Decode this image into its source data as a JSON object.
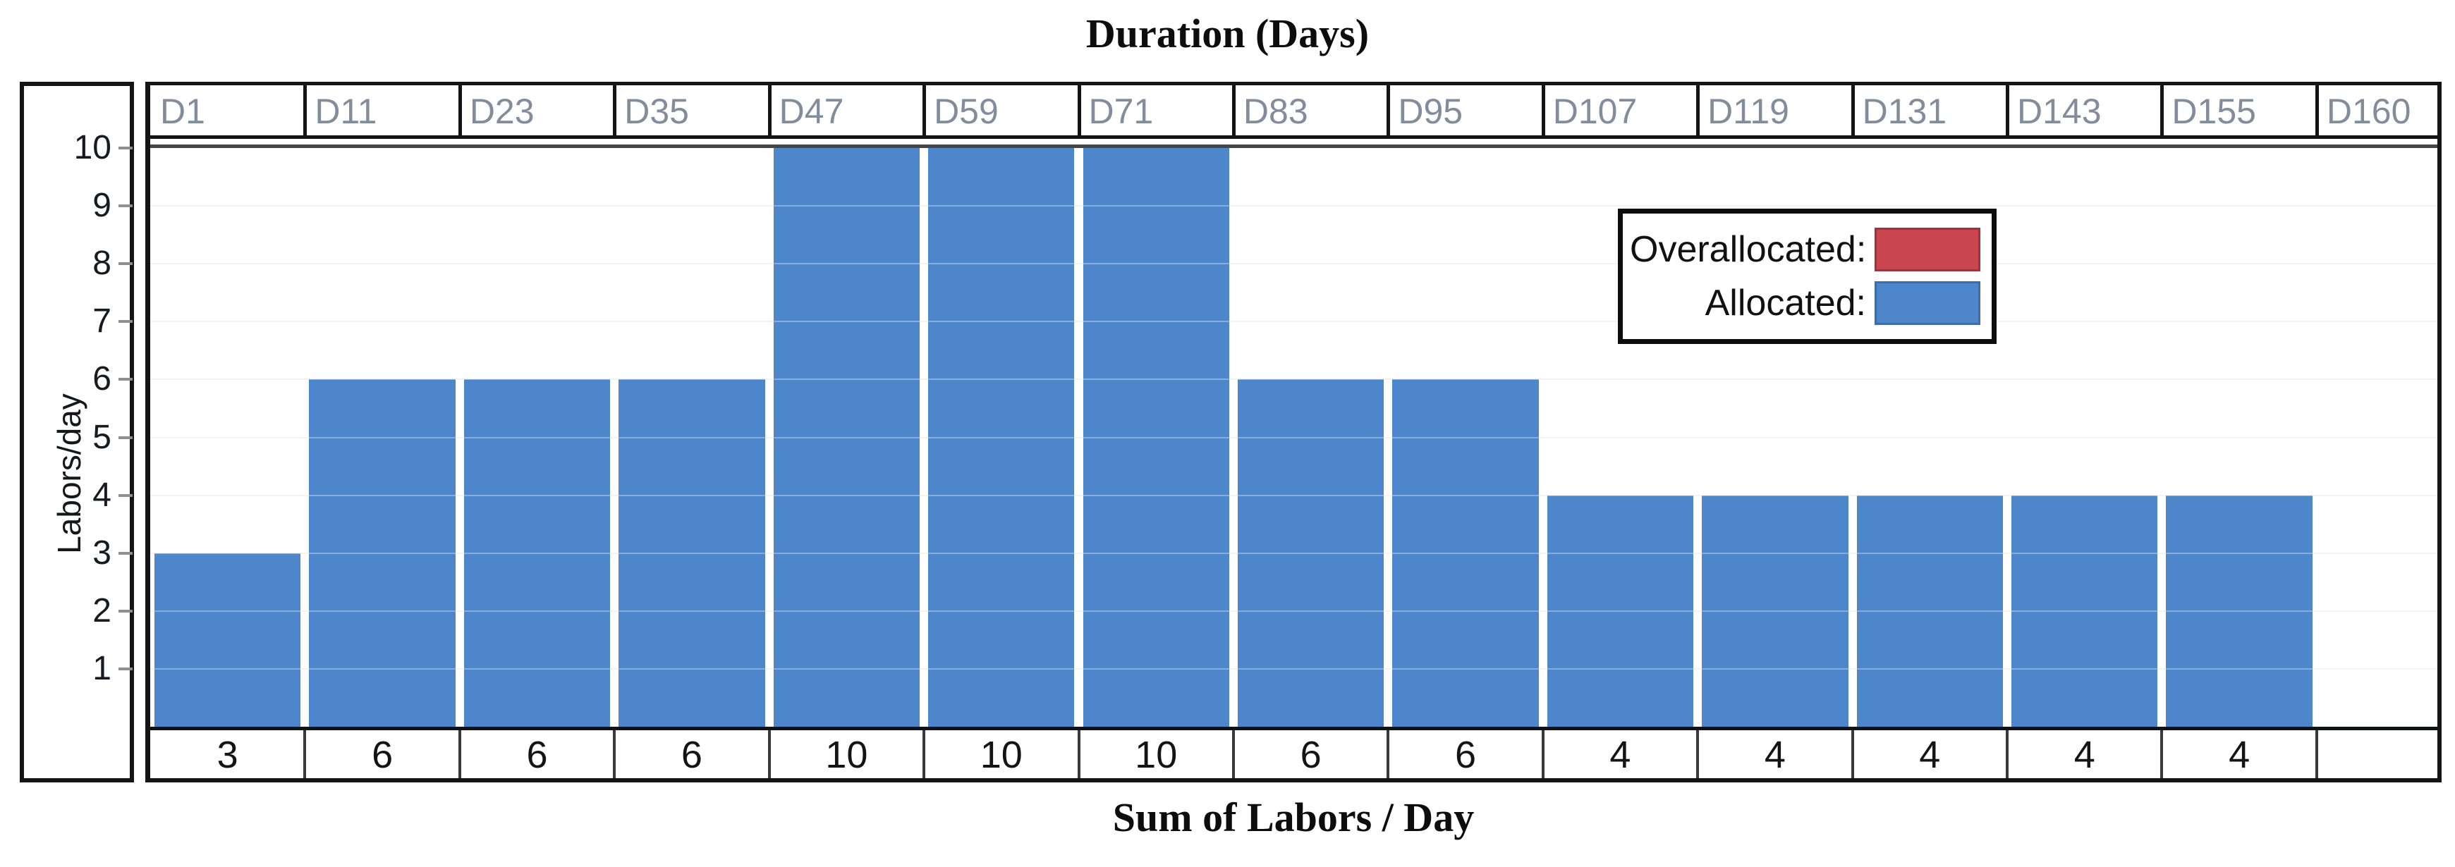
{
  "titles": {
    "top": "Duration (Days)",
    "bottom": "Sum of Labors / Day"
  },
  "y_axis": {
    "label": "Labors/day",
    "ticks": [
      "10",
      "9",
      "8",
      "7",
      "6",
      "5",
      "4",
      "3",
      "2",
      "1"
    ]
  },
  "legend": {
    "items": [
      {
        "label": "Overallocated:",
        "swatch_color": "#C9464F",
        "swatch_border": "#9c343c"
      },
      {
        "label": "Allocated:",
        "swatch_color": "#4E86CB",
        "swatch_border": "#3d6cac"
      }
    ]
  },
  "chart_data": {
    "type": "bar",
    "title": "Duration (Days)",
    "xlabel": "Sum of Labors / Day",
    "ylabel": "Labors/day",
    "ylim": [
      0,
      10
    ],
    "grid": true,
    "legend_position": "top-right",
    "categories": [
      "D1",
      "D11",
      "D23",
      "D35",
      "D47",
      "D59",
      "D71",
      "D83",
      "D95",
      "D107",
      "D119",
      "D131",
      "D143",
      "D155",
      "D160"
    ],
    "values": [
      3,
      6,
      6,
      6,
      10,
      10,
      10,
      6,
      6,
      4,
      4,
      4,
      4,
      4,
      null
    ],
    "sum_row": [
      "3",
      "6",
      "6",
      "6",
      "10",
      "10",
      "10",
      "6",
      "6",
      "4",
      "4",
      "4",
      "4",
      "4",
      ""
    ],
    "bar_color": "#4E86CB",
    "overallocated_color": "#C9464F",
    "gridline_color": "#ededed"
  }
}
